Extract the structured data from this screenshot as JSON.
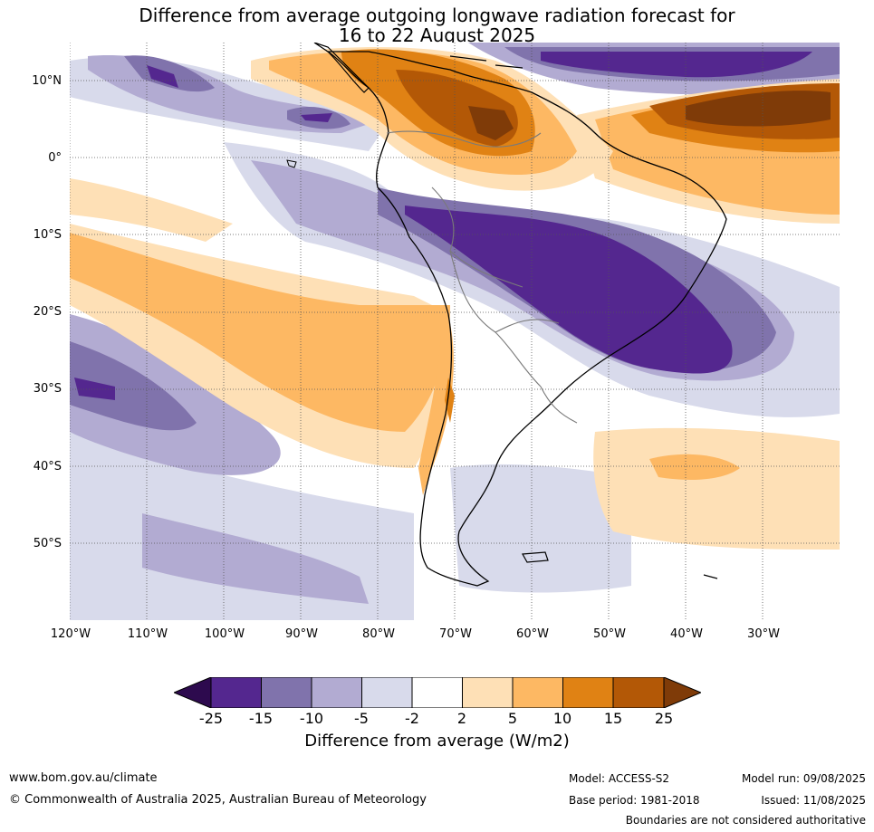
{
  "title": {
    "line1": "Difference from average outgoing longwave radiation forecast for",
    "line2": "16 to 22 August 2025"
  },
  "map": {
    "lat_labels": [
      "10°N",
      "0°",
      "10°S",
      "20°S",
      "30°S",
      "40°S",
      "50°S"
    ],
    "lon_labels": [
      "120°W",
      "110°W",
      "100°W",
      "90°W",
      "80°W",
      "70°W",
      "60°W",
      "50°W",
      "40°W",
      "30°W"
    ],
    "colors": {
      "le_-25": "#2d0a4e",
      "-25_-15": "#54278f",
      "-15_-10": "#8073ac",
      "-10_-5": "#b2abd2",
      "-5_-2": "#d8daeb",
      "-2_2": "#ffffff",
      "2_5": "#fee0b6",
      "5_10": "#fdb863",
      "10_15": "#e08214",
      "15_25": "#b35806",
      "ge_25": "#7f3b08"
    }
  },
  "legend": {
    "ticks": [
      "-25",
      "-15",
      "-10",
      "-5",
      "-2",
      "2",
      "5",
      "10",
      "15",
      "25"
    ],
    "title": "Difference from average (W/m2)"
  },
  "footer": {
    "url": "www.bom.gov.au/climate",
    "copyright": "© Commonwealth of Australia 2025, Australian Bureau of Meteorology",
    "model": "Model: ACCESS-S2",
    "base_period": "Base period: 1981-2018",
    "model_run": "Model run: 09/08/2025",
    "issued": "Issued: 11/08/2025",
    "boundaries": "Boundaries are not considered authoritative"
  }
}
